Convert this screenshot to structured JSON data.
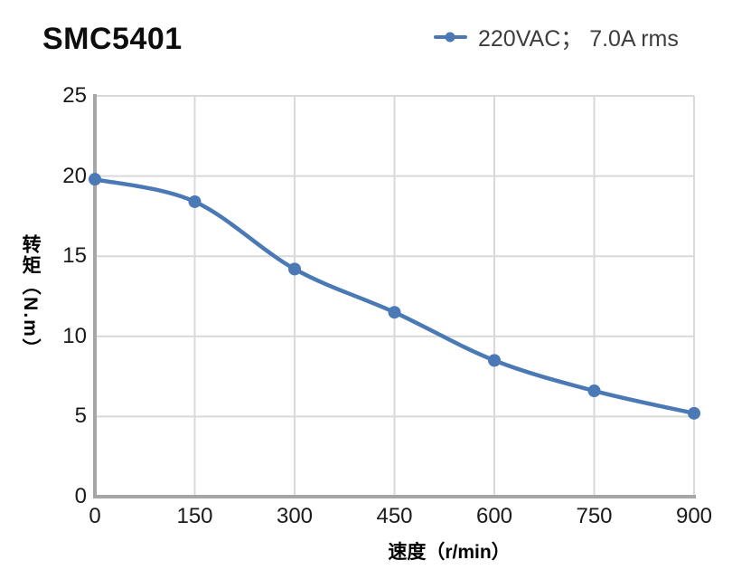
{
  "header": {
    "title": "SMC5401"
  },
  "chart_data": {
    "type": "line",
    "title": "SMC5401",
    "x": [
      0,
      150,
      300,
      450,
      600,
      750,
      900
    ],
    "series": [
      {
        "name": "220VAC； 7.0A rms",
        "values": [
          19.8,
          18.4,
          14.2,
          11.5,
          8.5,
          6.6,
          5.2
        ]
      }
    ],
    "xlabel": "速度（r/min）",
    "ylabel": "转矩（N.m）",
    "xlim": [
      0,
      900
    ],
    "ylim": [
      0,
      25
    ],
    "x_ticks": [
      0,
      150,
      300,
      450,
      600,
      750,
      900
    ],
    "y_ticks": [
      0,
      5,
      10,
      15,
      20,
      25
    ],
    "grid": true,
    "legend_position": "top-right",
    "line_color": "#4a79b5",
    "grid_color": "#d9d9d9",
    "axis_color": "#a6a6a6",
    "marker": "circle",
    "smooth": true
  }
}
